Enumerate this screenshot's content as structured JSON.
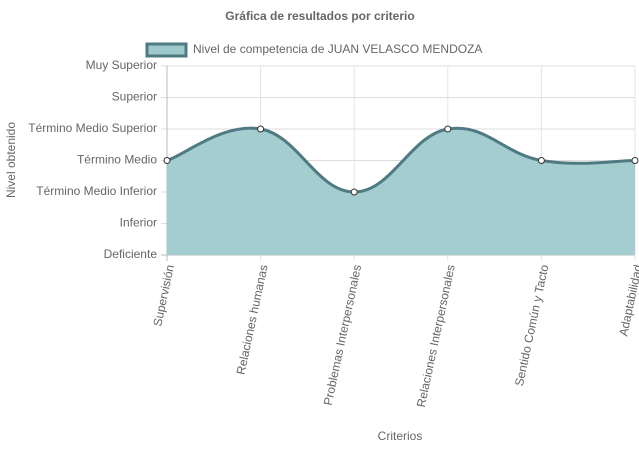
{
  "chart_data": {
    "type": "area",
    "title": "Gráfica de resultados por criterio",
    "x_label": "Criterios",
    "y_label": "Nivel obtenido",
    "categories": [
      "Supervisión",
      "Relaciones humanas",
      "Problemas Interpersonales",
      "Relaciones Interpersonales",
      "Sentido Común y Tacto",
      "Adaptabilidad"
    ],
    "series": [
      {
        "name": "Nivel de competencia de JUAN VELASCO MENDOZA",
        "color": "#4f7a82",
        "fill": "#9ecacc",
        "values": [
          3,
          4,
          2,
          4,
          3,
          3
        ]
      }
    ],
    "ylim": [
      0,
      6
    ],
    "yticks": [
      {
        "value": 0,
        "label": "Deficiente"
      },
      {
        "value": 1,
        "label": "Inferior"
      },
      {
        "value": 2,
        "label": "Término Medio Inferior"
      },
      {
        "value": 3,
        "label": "Término Medio"
      },
      {
        "value": 4,
        "label": "Término Medio Superior"
      },
      {
        "value": 5,
        "label": "Superior"
      },
      {
        "value": 6,
        "label": "Muy Superior"
      }
    ],
    "grid": true
  }
}
